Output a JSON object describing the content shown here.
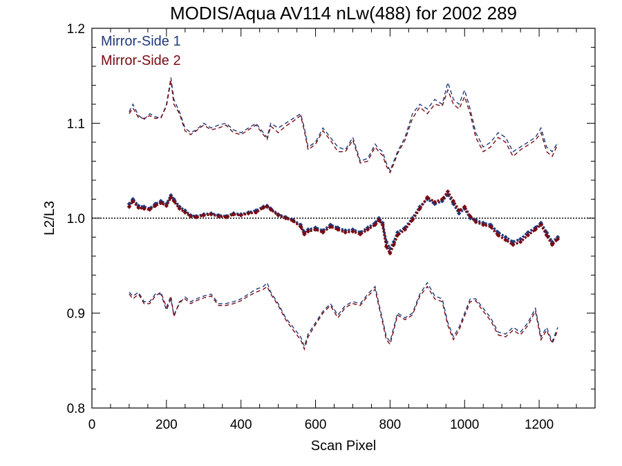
{
  "chart_data": {
    "type": "line",
    "title": "MODIS/Aqua AV114 nLw(488) for 2002 289",
    "xlabel": "Scan Pixel",
    "ylabel": "L2/L3",
    "xlim": [
      0,
      1350
    ],
    "ylim": [
      0.8,
      1.2
    ],
    "xticks": [
      0,
      200,
      400,
      600,
      800,
      1000,
      1200
    ],
    "xtick_labels": [
      "0",
      "200",
      "400",
      "600",
      "800",
      "1000",
      "1200"
    ],
    "yticks": [
      0.8,
      0.9,
      1.0,
      1.1,
      1.2
    ],
    "ytick_labels": [
      "0.8",
      "0.9",
      "1.0",
      "1.1",
      "1.2"
    ],
    "reference_line": 1.0,
    "legend_position": "top-left",
    "series": [
      {
        "name": "Mirror-Side 1",
        "color": "#1f3a7a",
        "mean": {
          "x": [
            100,
            110,
            125,
            140,
            155,
            170,
            185,
            200,
            212,
            220,
            235,
            250,
            265,
            280,
            300,
            320,
            340,
            360,
            380,
            400,
            420,
            440,
            460,
            470,
            480,
            500,
            520,
            540,
            560,
            570,
            580,
            600,
            620,
            640,
            660,
            680,
            700,
            720,
            740,
            760,
            770,
            780,
            790,
            800,
            810,
            820,
            840,
            860,
            880,
            900,
            920,
            940,
            955,
            970,
            985,
            1000,
            1015,
            1030,
            1050,
            1070,
            1090,
            1110,
            1130,
            1150,
            1170,
            1190,
            1205,
            1220,
            1235,
            1250
          ],
          "y": [
            1.015,
            1.02,
            1.013,
            1.012,
            1.01,
            1.015,
            1.018,
            1.015,
            1.024,
            1.02,
            1.012,
            1.008,
            1.003,
            1.002,
            1.004,
            1.005,
            1.003,
            1.002,
            1.005,
            1.004,
            1.006,
            1.008,
            1.012,
            1.013,
            1.01,
            1.004,
            1.001,
            0.998,
            0.993,
            0.985,
            0.988,
            0.99,
            0.987,
            0.993,
            0.99,
            0.987,
            0.988,
            0.985,
            0.99,
            0.995,
            1.0,
            0.995,
            0.975,
            0.968,
            0.975,
            0.985,
            0.99,
            1.0,
            1.012,
            1.02,
            1.015,
            1.018,
            1.025,
            1.015,
            1.005,
            1.01,
            1.0,
            0.998,
            0.995,
            0.993,
            0.985,
            0.98,
            0.975,
            0.978,
            0.985,
            0.99,
            0.995,
            0.985,
            0.975,
            0.98
          ]
        },
        "upper": {
          "x": [
            100,
            110,
            125,
            140,
            155,
            170,
            185,
            200,
            212,
            220,
            235,
            250,
            265,
            280,
            300,
            320,
            340,
            360,
            380,
            400,
            420,
            440,
            460,
            470,
            480,
            500,
            520,
            540,
            560,
            570,
            580,
            600,
            620,
            640,
            660,
            680,
            700,
            720,
            740,
            760,
            770,
            780,
            790,
            800,
            810,
            820,
            840,
            860,
            880,
            900,
            920,
            940,
            955,
            970,
            985,
            1000,
            1015,
            1030,
            1050,
            1070,
            1090,
            1110,
            1130,
            1150,
            1170,
            1190,
            1205,
            1220,
            1235,
            1250
          ],
          "y": [
            1.112,
            1.12,
            1.108,
            1.104,
            1.11,
            1.107,
            1.105,
            1.12,
            1.148,
            1.125,
            1.112,
            1.095,
            1.09,
            1.093,
            1.1,
            1.095,
            1.098,
            1.1,
            1.093,
            1.09,
            1.095,
            1.1,
            1.09,
            1.085,
            1.1,
            1.095,
            1.1,
            1.105,
            1.11,
            1.095,
            1.075,
            1.08,
            1.095,
            1.085,
            1.075,
            1.072,
            1.085,
            1.06,
            1.063,
            1.078,
            1.073,
            1.07,
            1.058,
            1.05,
            1.06,
            1.07,
            1.085,
            1.11,
            1.12,
            1.115,
            1.125,
            1.12,
            1.143,
            1.125,
            1.12,
            1.135,
            1.115,
            1.09,
            1.075,
            1.08,
            1.09,
            1.085,
            1.07,
            1.075,
            1.08,
            1.085,
            1.095,
            1.075,
            1.07,
            1.08
          ]
        },
        "lower": {
          "x": [
            100,
            110,
            125,
            140,
            155,
            170,
            185,
            200,
            212,
            220,
            235,
            250,
            265,
            280,
            300,
            320,
            340,
            360,
            380,
            400,
            420,
            440,
            460,
            470,
            480,
            500,
            520,
            540,
            560,
            570,
            580,
            600,
            620,
            640,
            660,
            680,
            700,
            720,
            740,
            760,
            770,
            780,
            790,
            800,
            810,
            820,
            840,
            860,
            880,
            900,
            920,
            940,
            955,
            970,
            985,
            1000,
            1015,
            1030,
            1050,
            1070,
            1090,
            1110,
            1130,
            1150,
            1170,
            1190,
            1205,
            1220,
            1235,
            1250
          ],
          "y": [
            0.922,
            0.918,
            0.922,
            0.912,
            0.912,
            0.92,
            0.92,
            0.903,
            0.915,
            0.898,
            0.91,
            0.917,
            0.912,
            0.915,
            0.918,
            0.92,
            0.91,
            0.91,
            0.912,
            0.915,
            0.92,
            0.925,
            0.928,
            0.932,
            0.922,
            0.91,
            0.895,
            0.885,
            0.875,
            0.865,
            0.878,
            0.89,
            0.902,
            0.91,
            0.898,
            0.908,
            0.912,
            0.91,
            0.92,
            0.928,
            0.91,
            0.893,
            0.875,
            0.87,
            0.885,
            0.9,
            0.895,
            0.9,
            0.92,
            0.932,
            0.918,
            0.915,
            0.89,
            0.875,
            0.885,
            0.9,
            0.915,
            0.915,
            0.905,
            0.895,
            0.88,
            0.878,
            0.885,
            0.88,
            0.89,
            0.905,
            0.875,
            0.885,
            0.87,
            0.885
          ]
        }
      },
      {
        "name": "Mirror-Side 2",
        "color": "#7a0a12",
        "mean": {
          "x": [
            100,
            110,
            125,
            140,
            155,
            170,
            185,
            200,
            212,
            220,
            235,
            250,
            265,
            280,
            300,
            320,
            340,
            360,
            380,
            400,
            420,
            440,
            460,
            470,
            480,
            500,
            520,
            540,
            560,
            570,
            580,
            600,
            620,
            640,
            660,
            680,
            700,
            720,
            740,
            760,
            770,
            780,
            790,
            800,
            810,
            820,
            840,
            860,
            880,
            900,
            920,
            940,
            955,
            970,
            985,
            1000,
            1015,
            1030,
            1050,
            1070,
            1090,
            1110,
            1130,
            1150,
            1170,
            1190,
            1205,
            1220,
            1235,
            1250
          ],
          "y": [
            1.012,
            1.018,
            1.011,
            1.01,
            1.009,
            1.013,
            1.016,
            1.013,
            1.022,
            1.018,
            1.01,
            1.006,
            1.002,
            1.001,
            1.003,
            1.004,
            1.002,
            1.001,
            1.004,
            1.003,
            1.005,
            1.006,
            1.011,
            1.012,
            1.009,
            1.003,
            1.0,
            0.997,
            0.991,
            0.983,
            0.986,
            0.988,
            0.985,
            0.991,
            0.988,
            0.985,
            0.986,
            0.983,
            0.988,
            0.993,
            0.998,
            0.993,
            0.97,
            0.963,
            0.972,
            0.982,
            0.988,
            0.998,
            1.01,
            1.022,
            1.017,
            1.02,
            1.028,
            1.018,
            1.008,
            1.012,
            1.002,
            0.996,
            0.993,
            0.991,
            0.982,
            0.977,
            0.972,
            0.975,
            0.982,
            0.988,
            0.993,
            0.982,
            0.972,
            0.978
          ]
        },
        "upper": {
          "x": [
            100,
            110,
            125,
            140,
            155,
            170,
            185,
            200,
            212,
            220,
            235,
            250,
            265,
            280,
            300,
            320,
            340,
            360,
            380,
            400,
            420,
            440,
            460,
            470,
            480,
            500,
            520,
            540,
            560,
            570,
            580,
            600,
            620,
            640,
            660,
            680,
            700,
            720,
            740,
            760,
            770,
            780,
            790,
            800,
            810,
            820,
            840,
            860,
            880,
            900,
            920,
            940,
            955,
            970,
            985,
            1000,
            1015,
            1030,
            1050,
            1070,
            1090,
            1110,
            1130,
            1150,
            1170,
            1190,
            1205,
            1220,
            1235,
            1250
          ],
          "y": [
            1.11,
            1.116,
            1.106,
            1.105,
            1.108,
            1.105,
            1.106,
            1.118,
            1.145,
            1.12,
            1.11,
            1.092,
            1.088,
            1.092,
            1.098,
            1.093,
            1.095,
            1.098,
            1.09,
            1.088,
            1.093,
            1.098,
            1.088,
            1.083,
            1.097,
            1.09,
            1.097,
            1.102,
            1.108,
            1.092,
            1.072,
            1.078,
            1.092,
            1.082,
            1.07,
            1.07,
            1.082,
            1.058,
            1.06,
            1.075,
            1.07,
            1.066,
            1.055,
            1.048,
            1.057,
            1.068,
            1.082,
            1.105,
            1.117,
            1.11,
            1.12,
            1.118,
            1.135,
            1.12,
            1.115,
            1.128,
            1.11,
            1.085,
            1.07,
            1.075,
            1.085,
            1.08,
            1.065,
            1.072,
            1.077,
            1.082,
            1.09,
            1.07,
            1.065,
            1.078
          ]
        },
        "lower": {
          "x": [
            100,
            110,
            125,
            140,
            155,
            170,
            185,
            200,
            212,
            220,
            235,
            250,
            265,
            280,
            300,
            320,
            340,
            360,
            380,
            400,
            420,
            440,
            460,
            470,
            480,
            500,
            520,
            540,
            560,
            570,
            580,
            600,
            620,
            640,
            660,
            680,
            700,
            720,
            740,
            760,
            770,
            780,
            790,
            800,
            810,
            820,
            840,
            860,
            880,
            900,
            920,
            940,
            955,
            970,
            985,
            1000,
            1015,
            1030,
            1050,
            1070,
            1090,
            1110,
            1130,
            1150,
            1170,
            1190,
            1205,
            1220,
            1235,
            1250
          ],
          "y": [
            0.92,
            0.915,
            0.92,
            0.91,
            0.91,
            0.918,
            0.922,
            0.906,
            0.918,
            0.896,
            0.912,
            0.915,
            0.91,
            0.913,
            0.916,
            0.918,
            0.908,
            0.908,
            0.91,
            0.913,
            0.918,
            0.922,
            0.925,
            0.928,
            0.92,
            0.908,
            0.893,
            0.882,
            0.872,
            0.862,
            0.875,
            0.888,
            0.9,
            0.908,
            0.895,
            0.906,
            0.91,
            0.908,
            0.918,
            0.925,
            0.907,
            0.89,
            0.872,
            0.867,
            0.882,
            0.898,
            0.893,
            0.898,
            0.918,
            0.928,
            0.915,
            0.912,
            0.887,
            0.872,
            0.882,
            0.897,
            0.912,
            0.913,
            0.902,
            0.892,
            0.877,
            0.875,
            0.882,
            0.877,
            0.887,
            0.902,
            0.872,
            0.882,
            0.868,
            0.882
          ]
        }
      }
    ]
  }
}
